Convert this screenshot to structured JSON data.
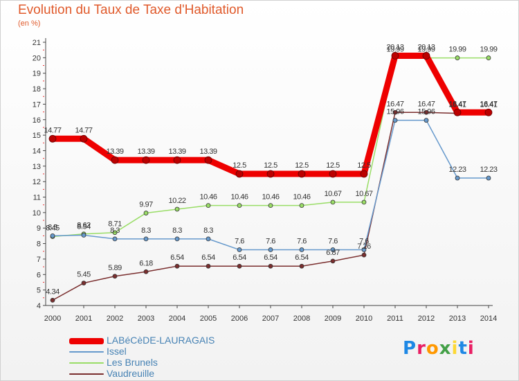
{
  "header": {
    "title": "Evolution du Taux de Taxe d'Habitation",
    "subtitle": "(en %)"
  },
  "logo": {
    "letters": [
      "P",
      "r",
      "o",
      "x",
      "i",
      "t",
      "i"
    ],
    "colors": [
      "#1e88e5",
      "#e91e63",
      "#ff9800",
      "#43a047",
      "#fdd835",
      "#1e88e5",
      "#e91e63"
    ]
  },
  "chart_data": {
    "type": "line",
    "x": [
      "2000",
      "2001",
      "2002",
      "2003",
      "2004",
      "2005",
      "2006",
      "2007",
      "2008",
      "2009",
      "2010",
      "2011",
      "2012",
      "2013",
      "2014"
    ],
    "ylim": [
      4,
      21
    ],
    "yticks": [
      4,
      5,
      6,
      7,
      8,
      9,
      10,
      11,
      12,
      13,
      14,
      15,
      16,
      17,
      18,
      19,
      20,
      21
    ],
    "grid": false,
    "series": [
      {
        "name": "LABéCèDE-LAURAGAIS",
        "color": "#ee0000",
        "values": [
          14.77,
          14.77,
          13.39,
          13.39,
          13.39,
          13.39,
          12.5,
          12.5,
          12.5,
          12.5,
          12.5,
          20.13,
          20.13,
          16.47,
          16.47
        ]
      },
      {
        "name": "Issel",
        "color": "#6699cc",
        "values": [
          8.5,
          8.54,
          8.3,
          8.3,
          8.3,
          8.3,
          7.6,
          7.6,
          7.6,
          7.6,
          7.6,
          15.96,
          15.96,
          12.23,
          12.23
        ]
      },
      {
        "name": "Les Brunels",
        "color": "#99dd66",
        "values": [
          8.45,
          8.62,
          8.71,
          9.97,
          10.22,
          10.46,
          10.46,
          10.46,
          10.46,
          10.67,
          10.67,
          19.99,
          19.99,
          19.99,
          19.99
        ]
      },
      {
        "name": "Vaudreuille",
        "color": "#7a2e2e",
        "values": [
          4.34,
          5.45,
          5.89,
          6.18,
          6.54,
          6.54,
          6.54,
          6.54,
          6.54,
          6.87,
          7.26,
          16.47,
          16.47,
          16.41,
          16.41
        ]
      }
    ]
  }
}
